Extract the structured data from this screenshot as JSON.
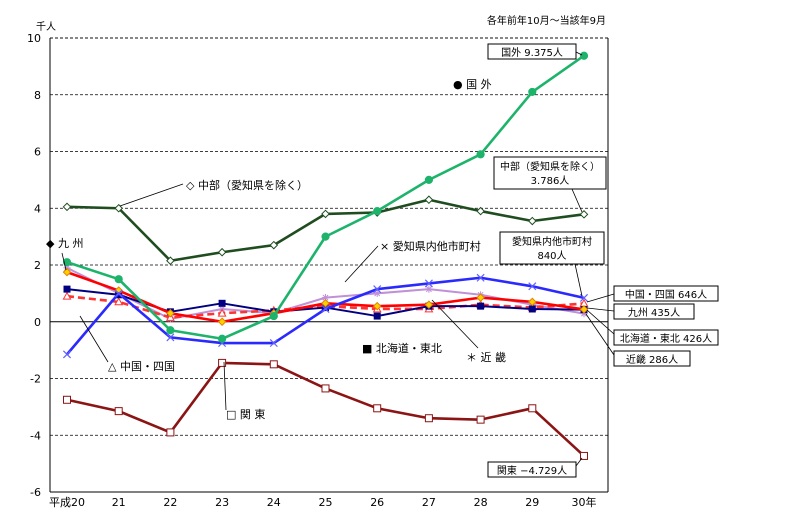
{
  "chart_data": {
    "type": "line",
    "unit_label": "千人",
    "period_note": "各年前年10月～当該年9月",
    "categories": [
      "平成20",
      "21",
      "22",
      "23",
      "24",
      "25",
      "26",
      "27",
      "28",
      "29",
      "30年"
    ],
    "ylim": [
      -6,
      10
    ],
    "yticks": [
      10,
      8,
      6,
      4,
      2,
      0,
      -2,
      -4,
      -6
    ],
    "grid": true,
    "series": [
      {
        "key": "abroad",
        "name": "国外",
        "legend_label": "● 国 外",
        "color": "#1db36b",
        "marker": "filled-circle",
        "values": [
          2.1,
          1.5,
          -0.3,
          -0.6,
          0.2,
          3.0,
          3.9,
          5.0,
          5.9,
          8.1,
          9.375
        ],
        "end_label": "国外 9.375人"
      },
      {
        "key": "chubu",
        "name": "中部（愛知県を除く）",
        "legend_label": "◇ 中部（愛知県を除く）",
        "color": "#1f4d1f",
        "marker": "open-diamond",
        "values": [
          4.05,
          4.0,
          2.15,
          2.45,
          2.7,
          3.8,
          3.85,
          4.3,
          3.9,
          3.55,
          3.786
        ],
        "end_label_line1": "中部（愛知県を除く）",
        "end_label_line2": "3.786人"
      },
      {
        "key": "aichi",
        "name": "愛知県内他市町村",
        "legend_label": "× 愛知県内他市町村",
        "color": "#2a2aff",
        "marker": "cross",
        "values": [
          -1.15,
          1.0,
          -0.55,
          -0.75,
          -0.75,
          0.45,
          1.15,
          1.35,
          1.55,
          1.25,
          0.84
        ],
        "end_label_line1": "愛知県内他市町村",
        "end_label_line2": "840人"
      },
      {
        "key": "kyushu",
        "name": "九州",
        "legend_label": "◆ 九 州",
        "color": "#ff0000",
        "marker": "yellow-diamond",
        "values": [
          1.75,
          1.1,
          0.3,
          0.0,
          0.3,
          0.65,
          0.55,
          0.6,
          0.85,
          0.7,
          0.435
        ],
        "end_label": "九州 435人"
      },
      {
        "key": "chugoku",
        "name": "中国・四国",
        "legend_label": "△ 中国・四国",
        "color": "#ff3333",
        "marker": "open-triangle",
        "values": [
          0.9,
          0.7,
          0.15,
          0.3,
          0.4,
          0.55,
          0.45,
          0.45,
          0.6,
          0.5,
          0.646
        ],
        "end_label": "中国・四国 646人"
      },
      {
        "key": "kinki",
        "name": "近畿",
        "legend_label": "＊ 近 畿",
        "color": "#c090d8",
        "marker": "asterisk",
        "values": [
          1.9,
          1.0,
          0.1,
          0.45,
          0.3,
          0.85,
          1.0,
          1.15,
          0.95,
          0.6,
          0.286
        ],
        "end_label": "近畿 286人"
      },
      {
        "key": "hokkaido",
        "name": "北海道・東北",
        "legend_label": "■ 北海道・東北",
        "color": "#000080",
        "marker": "filled-square",
        "values": [
          1.15,
          0.95,
          0.35,
          0.65,
          0.35,
          0.5,
          0.2,
          0.55,
          0.55,
          0.45,
          0.426
        ],
        "end_label": "北海道・東北 426人"
      },
      {
        "key": "kanto",
        "name": "関東",
        "legend_label": "□ 関 東",
        "color": "#8b1414",
        "marker": "open-square",
        "values": [
          -2.75,
          -3.15,
          -3.9,
          -1.45,
          -1.5,
          -2.35,
          -3.05,
          -3.4,
          -3.45,
          -3.05,
          -4.729
        ],
        "end_label": "関東 −4.729人"
      }
    ]
  }
}
